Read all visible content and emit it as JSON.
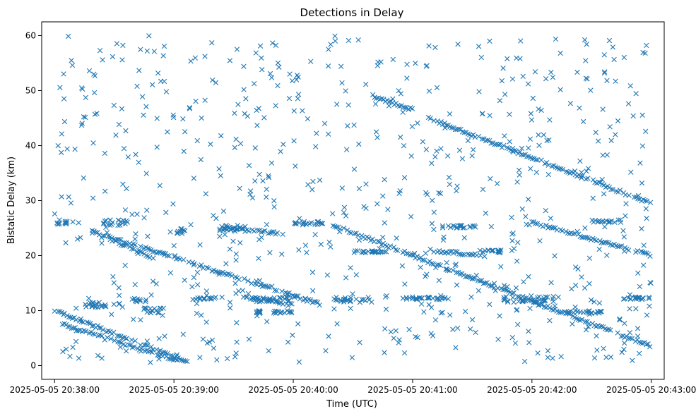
{
  "chart_data": {
    "type": "scatter",
    "title": "Detections in Delay",
    "xlabel": "Time (UTC)",
    "ylabel": "Bistatic Delay (km)",
    "marker": "x",
    "color": "#1f77b4",
    "grid": false,
    "legend": "none",
    "x_range_seconds": [
      -6.5,
      306.5
    ],
    "x_origin": "2025-05-05 20:38:00",
    "ylim": [
      -2.5,
      62.5
    ],
    "x_ticks": [
      {
        "value": 0,
        "label": "2025-05-05 20:38:00"
      },
      {
        "value": 60,
        "label": "2025-05-05 20:39:00"
      },
      {
        "value": 120,
        "label": "2025-05-05 20:40:00"
      },
      {
        "value": 180,
        "label": "2025-05-05 20:41:00"
      },
      {
        "value": 240,
        "label": "2025-05-05 20:42:00"
      },
      {
        "value": 300,
        "label": "2025-05-05 20:43:00"
      }
    ],
    "y_ticks": [
      0,
      10,
      20,
      30,
      40,
      50,
      60
    ],
    "tracks": [
      {
        "t_start": 0,
        "t_end": 68,
        "y_start": 10.0,
        "y_end": 0.5
      },
      {
        "t_start": 4,
        "t_end": 62,
        "y_start": 7.5,
        "y_end": 0.8
      },
      {
        "t_start": 18,
        "t_end": 135,
        "y_start": 24.5,
        "y_end": 11.0
      },
      {
        "t_start": 28,
        "t_end": 50,
        "y_start": 23.0,
        "y_end": 19.5
      },
      {
        "t_start": 140,
        "t_end": 300,
        "y_start": 25.5,
        "y_end": 3.5
      },
      {
        "t_start": 160,
        "t_end": 180,
        "y_start": 49.0,
        "y_end": 46.5
      },
      {
        "t_start": 188,
        "t_end": 300,
        "y_start": 45.0,
        "y_end": 29.5
      },
      {
        "t_start": 240,
        "t_end": 300,
        "y_start": 26.0,
        "y_end": 20.0
      },
      {
        "t_start": 188,
        "t_end": 215,
        "y_start": 21.0,
        "y_end": 20.0
      },
      {
        "t_start": 95,
        "t_end": 120,
        "y_start": 12.5,
        "y_end": 11.0
      },
      {
        "t_start": 85,
        "t_end": 115,
        "y_start": 25.0,
        "y_end": 24.0
      }
    ],
    "clusters": [
      {
        "t": [
          0,
          10
        ],
        "y": [
          25.5,
          26.5
        ]
      },
      {
        "t": [
          15,
          35
        ],
        "y": [
          10.5,
          11.5
        ]
      },
      {
        "t": [
          22,
          38
        ],
        "y": [
          25.5,
          26.5
        ]
      },
      {
        "t": [
          38,
          46
        ],
        "y": [
          11.5,
          12.5
        ]
      },
      {
        "t": [
          44,
          58
        ],
        "y": [
          9.5,
          10.5
        ]
      },
      {
        "t": [
          58,
          66
        ],
        "y": [
          24.0,
          25.0
        ]
      },
      {
        "t": [
          70,
          82
        ],
        "y": [
          12.0,
          12.5
        ]
      },
      {
        "t": [
          82,
          96
        ],
        "y": [
          24.5,
          25.5
        ]
      },
      {
        "t": [
          96,
          120
        ],
        "y": [
          11.5,
          12.5
        ]
      },
      {
        "t": [
          100,
          120
        ],
        "y": [
          9.5,
          10.0
        ]
      },
      {
        "t": [
          120,
          136
        ],
        "y": [
          25.5,
          26.2
        ]
      },
      {
        "t": [
          140,
          160
        ],
        "y": [
          11.5,
          12.5
        ]
      },
      {
        "t": [
          150,
          168
        ],
        "y": [
          20.5,
          21.0
        ]
      },
      {
        "t": [
          175,
          200
        ],
        "y": [
          12.0,
          12.5
        ]
      },
      {
        "t": [
          195,
          212
        ],
        "y": [
          25.0,
          25.5
        ]
      },
      {
        "t": [
          210,
          225
        ],
        "y": [
          20.5,
          21.0
        ]
      },
      {
        "t": [
          225,
          250
        ],
        "y": [
          11.5,
          12.5
        ]
      },
      {
        "t": [
          255,
          275
        ],
        "y": [
          9.5,
          10.0
        ]
      },
      {
        "t": [
          270,
          285
        ],
        "y": [
          26.0,
          26.5
        ]
      },
      {
        "t": [
          285,
          300
        ],
        "y": [
          12.0,
          12.5
        ]
      }
    ],
    "noise_count": 700,
    "noise_y_range": [
      0.5,
      60
    ]
  }
}
